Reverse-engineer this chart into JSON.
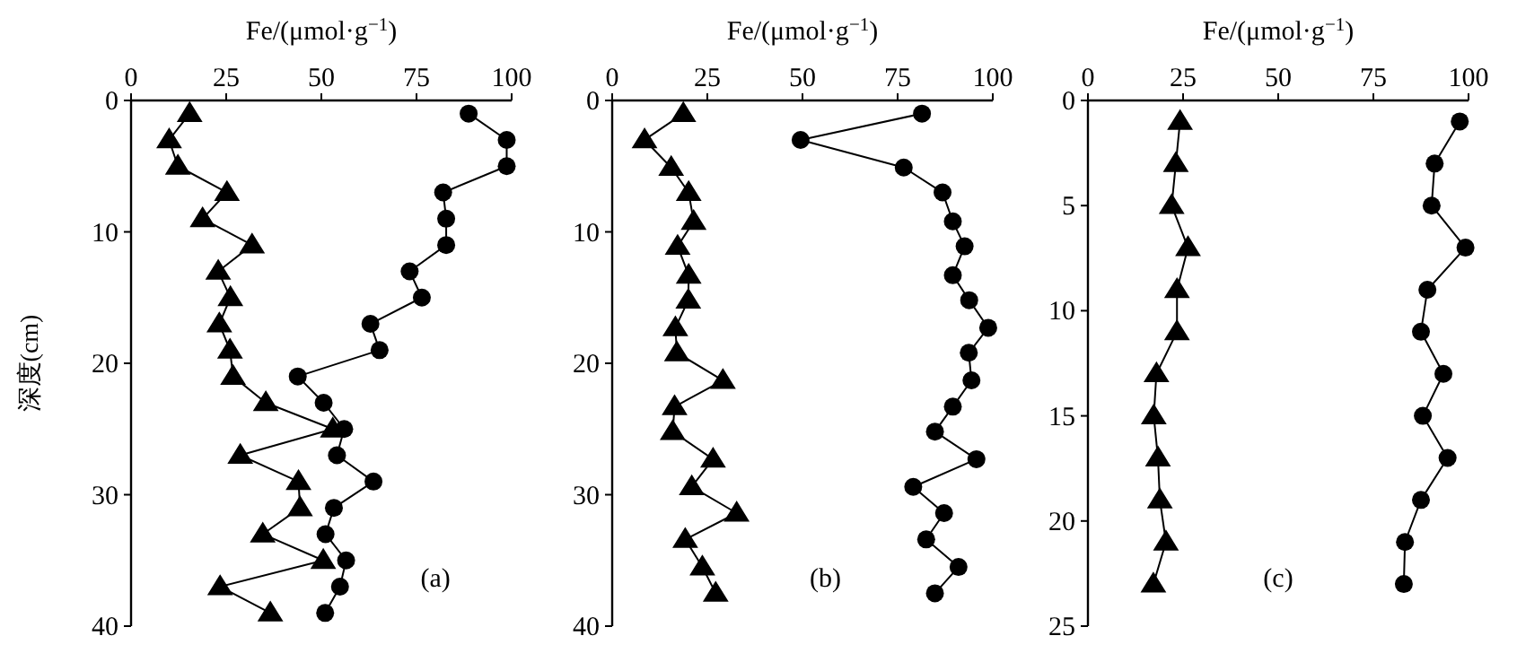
{
  "chart_data": [
    {
      "type": "line",
      "xlabel": "Fe/(μmol·g$^{−1}$)",
      "ylabel": "深度(cm)",
      "xlim": [
        0,
        100
      ],
      "xticks": [
        0,
        25,
        50,
        75,
        100
      ],
      "ylim": [
        40,
        0
      ],
      "yticks": [
        0,
        10,
        20,
        30,
        40
      ],
      "annotations": [
        "(a)"
      ],
      "series": [
        {
          "color": "#000000",
          "marker": "circle",
          "x": [
            88.7,
            98.7,
            98.7,
            82,
            82.8,
            82.8,
            73.2,
            76.4,
            62.9,
            65.3,
            43.8,
            50.6,
            56,
            54.1,
            63.7,
            53.3,
            51.1,
            56.5,
            54.9,
            51
          ],
          "values": [
            1,
            3,
            5,
            7,
            9,
            11,
            13,
            15,
            17,
            19,
            21,
            23,
            25,
            27,
            29,
            31,
            33,
            35,
            37,
            39
          ]
        },
        {
          "color": "#000000",
          "marker": "triangle",
          "x": [
            15.4,
            10,
            12.3,
            25.2,
            18.8,
            31.8,
            22.9,
            26.1,
            23.2,
            26,
            26.8,
            35.4,
            53,
            28.7,
            44,
            44.4,
            34.6,
            50.5,
            23.4,
            36.6
          ],
          "values": [
            1,
            3,
            5,
            7,
            9,
            11,
            13,
            15,
            17,
            19,
            21,
            23,
            25,
            27,
            29,
            31,
            33,
            35,
            37,
            39
          ]
        }
      ]
    },
    {
      "type": "line",
      "xlabel": "Fe/(μmol·g$^{−1}$)",
      "xlim": [
        0,
        100
      ],
      "xticks": [
        0,
        25,
        50,
        75,
        100
      ],
      "ylim": [
        40,
        0
      ],
      "yticks": [
        0,
        10,
        20,
        30,
        40
      ],
      "annotations": [
        "(b)"
      ],
      "series": [
        {
          "color": "#000000",
          "marker": "circle",
          "x": [
            81.4,
            49.5,
            76.6,
            86.8,
            89.5,
            92.6,
            89.5,
            93.8,
            98.8,
            93.7,
            94.4,
            89.5,
            84.8,
            95.7,
            79.1,
            87.2,
            82.5,
            91,
            84.8
          ],
          "values": [
            1,
            3,
            5.1,
            7,
            9.2,
            11.1,
            13.3,
            15.2,
            17.3,
            19.2,
            21.3,
            23.3,
            25.2,
            27.3,
            29.4,
            31.4,
            33.4,
            35.5,
            37.5
          ]
        },
        {
          "color": "#000000",
          "marker": "triangle",
          "x": [
            18.7,
            8.5,
            15.5,
            20.1,
            21.4,
            17.2,
            20.1,
            20,
            16.6,
            17,
            29.1,
            16.4,
            15.9,
            26.5,
            20.9,
            32.7,
            19.2,
            23.7,
            27.2
          ],
          "values": [
            1,
            3,
            5.1,
            7,
            9.2,
            11.1,
            13.3,
            15.2,
            17.3,
            19.2,
            21.3,
            23.3,
            25.2,
            27.3,
            29.4,
            31.4,
            33.4,
            35.5,
            37.5
          ]
        }
      ]
    },
    {
      "type": "line",
      "xlabel": "Fe/(μmol·g$^{−1}$)",
      "xlim": [
        0,
        100
      ],
      "xticks": [
        0,
        25,
        50,
        75,
        100
      ],
      "ylim": [
        25,
        0
      ],
      "yticks": [
        0,
        5,
        10,
        15,
        20,
        25
      ],
      "annotations": [
        "(c)"
      ],
      "series": [
        {
          "color": "#000000",
          "marker": "circle",
          "x": [
            97.7,
            91.1,
            90.3,
            99.2,
            89.2,
            87.5,
            93.4,
            88,
            94.5,
            87.5,
            83.3,
            83
          ],
          "values": [
            1,
            3,
            5,
            7,
            9,
            11,
            13,
            15,
            17,
            19,
            21,
            23
          ]
        },
        {
          "color": "#000000",
          "marker": "triangle",
          "x": [
            24.2,
            23.1,
            22,
            26.3,
            23.4,
            23.4,
            18,
            17.3,
            18.4,
            18.9,
            20.5,
            17.2
          ],
          "values": [
            1,
            3,
            5,
            7,
            9,
            11,
            13,
            15,
            17,
            19,
            21,
            23
          ]
        }
      ]
    }
  ]
}
